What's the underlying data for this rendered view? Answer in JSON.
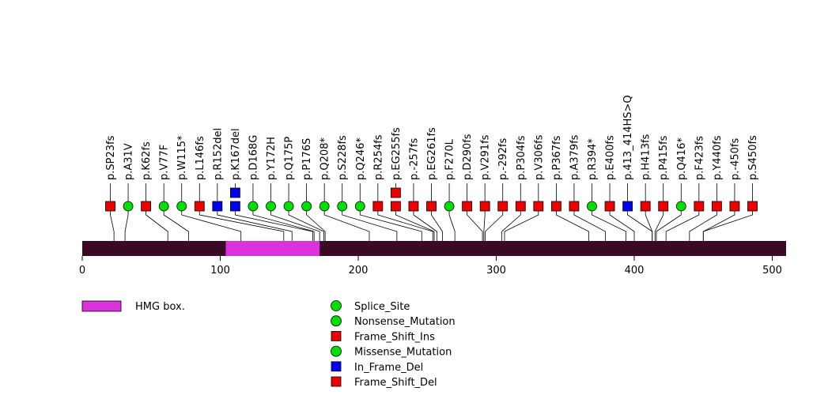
{
  "chart_data": {
    "type": "lollipop",
    "protein_length": 510,
    "axis": {
      "xlim": [
        0,
        510
      ],
      "ticks": [
        0,
        100,
        200,
        300,
        400,
        500
      ],
      "tick_labels": [
        "0",
        "100",
        "200",
        "300",
        "400",
        "500"
      ]
    },
    "domains": [
      {
        "name": "HMG box.",
        "start": 104,
        "end": 172,
        "color": "#dc32dc"
      }
    ],
    "legend": {
      "domains": [
        {
          "label": "HMG box.",
          "color": "#dc32dc"
        }
      ],
      "mutation_types": [
        {
          "label": "Splice_Site",
          "shape": "circle",
          "color": "#00e000"
        },
        {
          "label": "Nonsense_Mutation",
          "shape": "circle",
          "color": "#00e000"
        },
        {
          "label": "Frame_Shift_Ins",
          "shape": "square",
          "color": "#ee0000"
        },
        {
          "label": "Missense_Mutation",
          "shape": "circle",
          "color": "#00e000"
        },
        {
          "label": "In_Frame_Del",
          "shape": "square",
          "color": "#0000ee"
        },
        {
          "label": "Frame_Shift_Del",
          "shape": "square",
          "color": "#ee0000"
        }
      ]
    },
    "mutations": [
      {
        "label": "p.SP23fs",
        "position": 23,
        "shape": "square",
        "color": "#ee0000",
        "count": 1
      },
      {
        "label": "p.A31V",
        "position": 31,
        "shape": "circle",
        "color": "#00e000",
        "count": 1
      },
      {
        "label": "p.K62fs",
        "position": 62,
        "shape": "square",
        "color": "#ee0000",
        "count": 1
      },
      {
        "label": "p.V77F",
        "position": 77,
        "shape": "circle",
        "color": "#00e000",
        "count": 1
      },
      {
        "label": "p.W115*",
        "position": 115,
        "shape": "circle",
        "color": "#00e000",
        "count": 1
      },
      {
        "label": "p.L146fs",
        "position": 146,
        "shape": "square",
        "color": "#ee0000",
        "count": 1
      },
      {
        "label": "p.R152del",
        "position": 152,
        "shape": "square",
        "color": "#0000ee",
        "count": 1
      },
      {
        "label": "p.K167del",
        "position": 167,
        "shape": "square",
        "color": "#0000ee",
        "count": 2
      },
      {
        "label": "p.D168G",
        "position": 168,
        "shape": "circle",
        "color": "#00e000",
        "count": 1
      },
      {
        "label": "p.Y172H",
        "position": 172,
        "shape": "circle",
        "color": "#00e000",
        "count": 1
      },
      {
        "label": "p.Q175P",
        "position": 175,
        "shape": "circle",
        "color": "#00e000",
        "count": 1
      },
      {
        "label": "p.P176S",
        "position": 176,
        "shape": "circle",
        "color": "#00e000",
        "count": 1
      },
      {
        "label": "p.Q208*",
        "position": 208,
        "shape": "circle",
        "color": "#00e000",
        "count": 1
      },
      {
        "label": "p.S228fs",
        "position": 228,
        "shape": "circle",
        "color": "#00e000",
        "count": 1
      },
      {
        "label": "p.Q246*",
        "position": 246,
        "shape": "circle",
        "color": "#00e000",
        "count": 1
      },
      {
        "label": "p.R254fs",
        "position": 254,
        "shape": "square",
        "color": "#ee0000",
        "count": 1
      },
      {
        "label": "p.EG255fs",
        "position": 255,
        "shape": "square",
        "color": "#ee0000",
        "count": 2
      },
      {
        "label": "p.-257fs",
        "position": 257,
        "shape": "square",
        "color": "#ee0000",
        "count": 1
      },
      {
        "label": "p.EG261fs",
        "position": 261,
        "shape": "square",
        "color": "#ee0000",
        "count": 1
      },
      {
        "label": "p.F270L",
        "position": 270,
        "shape": "circle",
        "color": "#00e000",
        "count": 1
      },
      {
        "label": "p.D290fs",
        "position": 290,
        "shape": "square",
        "color": "#ee0000",
        "count": 1
      },
      {
        "label": "p.V291fs",
        "position": 291,
        "shape": "square",
        "color": "#ee0000",
        "count": 1
      },
      {
        "label": "p.-292fs",
        "position": 292,
        "shape": "square",
        "color": "#ee0000",
        "count": 1
      },
      {
        "label": "p.P304fs",
        "position": 304,
        "shape": "square",
        "color": "#ee0000",
        "count": 1
      },
      {
        "label": "p.V306fs",
        "position": 306,
        "shape": "square",
        "color": "#ee0000",
        "count": 1
      },
      {
        "label": "p.P367fs",
        "position": 367,
        "shape": "square",
        "color": "#ee0000",
        "count": 1
      },
      {
        "label": "p.A379fs",
        "position": 379,
        "shape": "square",
        "color": "#ee0000",
        "count": 1
      },
      {
        "label": "p.R394*",
        "position": 394,
        "shape": "circle",
        "color": "#00e000",
        "count": 1
      },
      {
        "label": "p.E400fs",
        "position": 400,
        "shape": "square",
        "color": "#ee0000",
        "count": 1
      },
      {
        "label": "p.413_414HS>Q",
        "position": 413,
        "shape": "square",
        "color": "#0000ee",
        "count": 1
      },
      {
        "label": "p.H413fs",
        "position": 413,
        "shape": "square",
        "color": "#ee0000",
        "count": 1
      },
      {
        "label": "p.P415fs",
        "position": 415,
        "shape": "square",
        "color": "#ee0000",
        "count": 1
      },
      {
        "label": "p.Q416*",
        "position": 416,
        "shape": "circle",
        "color": "#00e000",
        "count": 1
      },
      {
        "label": "p.F423fs",
        "position": 423,
        "shape": "square",
        "color": "#ee0000",
        "count": 1
      },
      {
        "label": "p.Y440fs",
        "position": 440,
        "shape": "square",
        "color": "#ee0000",
        "count": 1
      },
      {
        "label": "p.-450fs",
        "position": 450,
        "shape": "square",
        "color": "#ee0000",
        "count": 1
      },
      {
        "label": "p.S450fs",
        "position": 450,
        "shape": "square",
        "color": "#ee0000",
        "count": 1
      }
    ]
  }
}
